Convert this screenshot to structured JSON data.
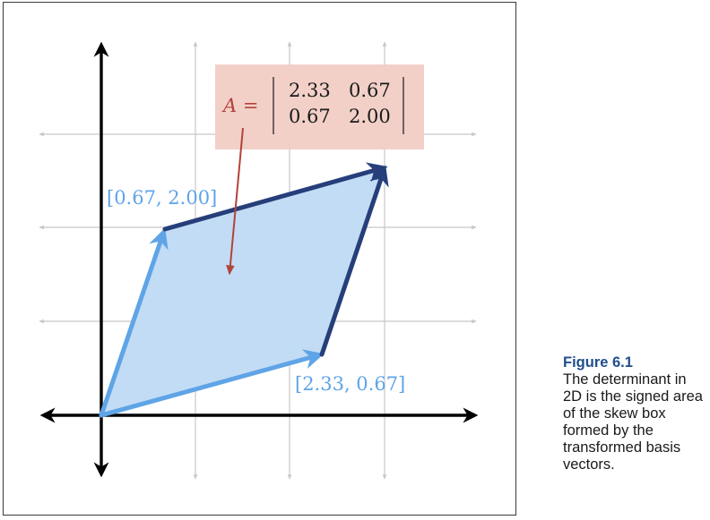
{
  "figure": {
    "matrix": {
      "lhs": "A =",
      "rows": [
        [
          "2.33",
          "0.67"
        ],
        [
          "0.67",
          "2.00"
        ]
      ]
    },
    "vector_labels": {
      "v1": "[0.67, 2.00]",
      "v2": "[2.33, 0.67]"
    },
    "colors": {
      "light_vector": "#5fa4e6",
      "dark_vector": "#263f7a",
      "fill": "#c2dcf5",
      "matrix_box": "#f2d0c8",
      "pointer_arrow": "#b2443a",
      "grid": "#c8c8c8",
      "axes": "#000000"
    }
  },
  "caption": {
    "label": "Figure 6.1",
    "text": "The determinant in 2D is the signed area of the skew box formed by the transformed basis vectors."
  }
}
